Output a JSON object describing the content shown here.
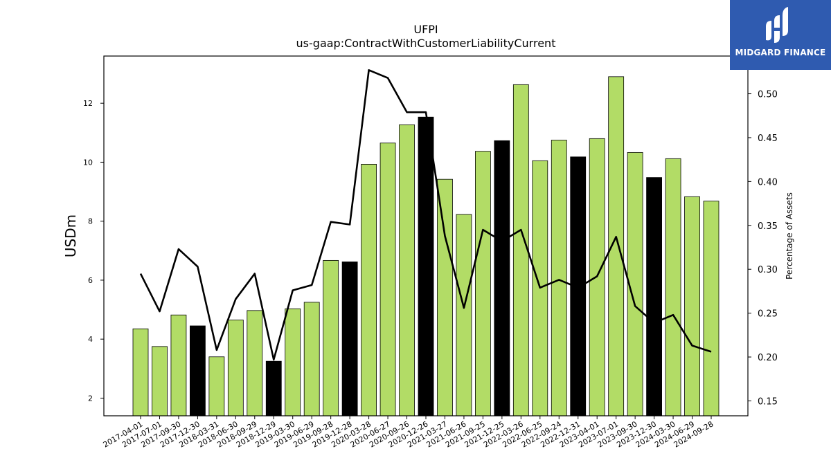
{
  "chart_data": {
    "type": "bar+line",
    "title": "UFPI",
    "subtitle": "us-gaap:ContractWithCustomerLiabilityCurrent",
    "ylabel": "USDm",
    "ylabel_right": "Percentage of Assets",
    "ylim": [
      1.4,
      13.6
    ],
    "ylim_right": [
      0.133,
      0.543
    ],
    "yticks": [
      2,
      4,
      6,
      8,
      10,
      12
    ],
    "yticks_right": [
      0.15,
      0.2,
      0.25,
      0.3,
      0.35,
      0.4,
      0.45,
      0.5
    ],
    "categories": [
      "2017-04-01",
      "2017-07-01",
      "2017-09-30",
      "2017-12-30",
      "2018-03-31",
      "2018-06-30",
      "2018-09-29",
      "2018-12-29",
      "2019-03-30",
      "2019-06-29",
      "2019-09-28",
      "2019-12-28",
      "2020-03-28",
      "2020-06-27",
      "2020-09-26",
      "2020-12-26",
      "2021-03-27",
      "2021-06-26",
      "2021-09-25",
      "2021-12-25",
      "2022-03-26",
      "2022-06-25",
      "2022-09-24",
      "2022-12-31",
      "2023-04-01",
      "2023-07-01",
      "2023-09-30",
      "2023-12-30",
      "2024-03-30",
      "2024-06-29",
      "2024-09-28"
    ],
    "bar_values": [
      4.35,
      3.75,
      4.82,
      4.45,
      3.4,
      4.65,
      4.97,
      3.25,
      5.03,
      5.25,
      6.67,
      6.62,
      9.93,
      10.65,
      11.27,
      11.53,
      9.42,
      8.23,
      10.37,
      10.73,
      12.63,
      10.05,
      10.75,
      10.18,
      10.8,
      12.9,
      10.33,
      9.48,
      10.12,
      8.83,
      8.68
    ],
    "bar_year_end": [
      false,
      false,
      false,
      true,
      false,
      false,
      false,
      true,
      false,
      false,
      false,
      true,
      false,
      false,
      false,
      true,
      false,
      false,
      false,
      true,
      false,
      false,
      false,
      true,
      false,
      false,
      false,
      true,
      false,
      false,
      false
    ],
    "line_values": [
      0.295,
      0.252,
      0.323,
      0.303,
      0.208,
      0.266,
      0.295,
      0.197,
      0.276,
      0.282,
      0.354,
      0.351,
      0.527,
      0.518,
      0.479,
      0.479,
      0.338,
      0.256,
      0.345,
      0.332,
      0.345,
      0.279,
      0.288,
      0.279,
      0.292,
      0.337,
      0.258,
      0.239,
      0.248,
      0.213,
      0.206
    ],
    "colors": {
      "bar": "#b2dc66",
      "bar_year_end": "#000000",
      "line": "#000000",
      "bar_edge": "#000000"
    }
  },
  "logo": {
    "text": "MIDGARD FINANCE",
    "bg_color": "#2f5bb0"
  }
}
